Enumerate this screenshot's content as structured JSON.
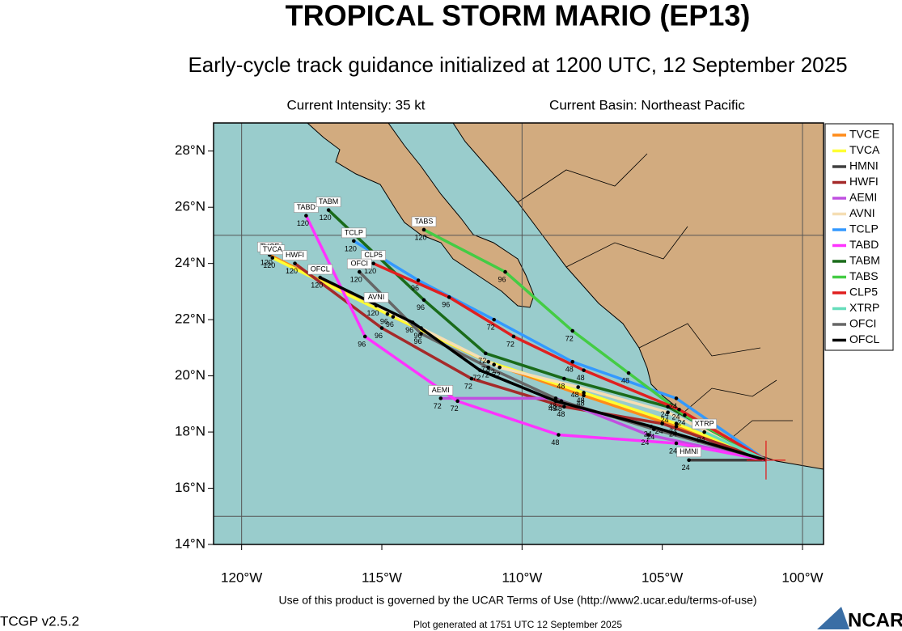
{
  "chart_data": {
    "type": "track-map",
    "title": "TROPICAL STORM MARIO (EP13)",
    "subtitle": "Early-cycle track guidance initialized at 1200 UTC, 12 September 2025",
    "intensity": "Current Intensity: 35 kt",
    "basin": "Current Basin: Northeast Pacific",
    "terms": "Use of this product is governed by the UCAR Terms of Use (http://www2.ucar.edu/terms-of-use)",
    "version": "TCGP v2.5.2",
    "generated": "Plot generated at 1751 UTC   12 September 2025",
    "logo": "NCAR",
    "xlim": [
      -121,
      -99.25
    ],
    "ylim": [
      14,
      29
    ],
    "xticks": [
      {
        "value": -120,
        "label": "120°W"
      },
      {
        "value": -115,
        "label": "115°W"
      },
      {
        "value": -110,
        "label": "110°W"
      },
      {
        "value": -105,
        "label": "105°W"
      },
      {
        "value": -100,
        "label": "100°W"
      }
    ],
    "yticks": [
      {
        "value": 14,
        "label": "14°N"
      },
      {
        "value": 16,
        "label": "16°N"
      },
      {
        "value": 18,
        "label": "18°N"
      },
      {
        "value": 20,
        "label": "20°N"
      },
      {
        "value": 22,
        "label": "22°N"
      },
      {
        "value": 24,
        "label": "24°N"
      },
      {
        "value": 26,
        "label": "26°N"
      },
      {
        "value": 28,
        "label": "28°N"
      }
    ],
    "grid_lon": [
      -120,
      -110,
      -100
    ],
    "grid_lat": [
      15,
      25
    ],
    "hours": [
      0,
      24,
      48,
      72,
      96,
      120
    ],
    "series": [
      {
        "name": "TVCE",
        "color": "#ff8c1a",
        "lon": [
          -101.3,
          -104.5,
          -107.8,
          -111.0,
          -114.6,
          -119.0
        ],
        "lat": [
          17.0,
          18.2,
          19.3,
          20.4,
          22.1,
          24.3
        ]
      },
      {
        "name": "TVCA",
        "color": "#ffff33",
        "lon": [
          -101.3,
          -104.5,
          -107.8,
          -111.2,
          -114.8,
          -118.9
        ],
        "lat": [
          17.0,
          18.3,
          19.4,
          20.5,
          22.2,
          24.2
        ]
      },
      {
        "name": "HMNI",
        "color": "#404040",
        "lon": [
          -101.3,
          -104.05,
          null,
          null,
          null,
          null
        ],
        "lat": [
          17.0,
          17.0,
          null,
          null,
          null,
          null
        ]
      },
      {
        "name": "HWFI",
        "color": "#a52a2a",
        "lon": [
          -101.3,
          -105.0,
          -108.5,
          -111.8,
          -115.0,
          -118.1
        ],
        "lat": [
          17.0,
          18.3,
          18.9,
          19.9,
          21.7,
          24.0
        ]
      },
      {
        "name": "AEMI",
        "color": "#c050e0",
        "lon": [
          -101.3,
          -105.5,
          -108.8,
          -112.9,
          null,
          null
        ],
        "lat": [
          17.0,
          17.9,
          19.2,
          19.2,
          null,
          null
        ]
      },
      {
        "name": "AVNI",
        "color": "#f5deb3",
        "lon": [
          -101.3,
          -104.8,
          -108.0,
          -110.8,
          -113.6,
          -115.2
        ],
        "lat": [
          17.0,
          18.7,
          19.6,
          20.3,
          21.7,
          22.5
        ]
      },
      {
        "name": "TCLP",
        "color": "#3399ff",
        "lon": [
          -101.3,
          -104.5,
          -108.2,
          -111.0,
          -113.7,
          -116.0
        ],
        "lat": [
          17.0,
          19.2,
          20.5,
          22.0,
          23.4,
          24.8
        ]
      },
      {
        "name": "TABD",
        "color": "#ff33ff",
        "lon": [
          -101.3,
          -104.5,
          -108.7,
          -112.3,
          -115.6,
          -117.7
        ],
        "lat": [
          17.0,
          17.6,
          17.9,
          19.1,
          21.4,
          25.7
        ]
      },
      {
        "name": "TABM",
        "color": "#1a6b1a",
        "lon": [
          -101.3,
          -104.8,
          -108.5,
          -111.3,
          -113.5,
          -116.9
        ],
        "lat": [
          17.0,
          18.9,
          19.9,
          20.8,
          22.7,
          25.9
        ]
      },
      {
        "name": "TABS",
        "color": "#44cc44",
        "lon": [
          -101.3,
          -104.2,
          -106.2,
          -108.2,
          -110.6,
          -113.5
        ],
        "lat": [
          17.0,
          18.6,
          20.1,
          21.6,
          23.7,
          25.2
        ]
      },
      {
        "name": "CLP5",
        "color": "#e02020",
        "lon": [
          -101.3,
          -104.4,
          -107.8,
          -110.3,
          -112.6,
          -115.3
        ],
        "lat": [
          17.0,
          18.8,
          20.2,
          21.4,
          22.8,
          24.0
        ]
      },
      {
        "name": "XTRP",
        "color": "#66ddbb",
        "lon": [
          -101.3,
          -103.5,
          null,
          null,
          null,
          null
        ],
        "lat": [
          17.0,
          18.0,
          null,
          null,
          null,
          null
        ]
      },
      {
        "name": "OFCI",
        "color": "#666666",
        "lon": [
          -101.3,
          -105.3,
          -108.6,
          -111.2,
          -113.6,
          -115.8
        ],
        "lat": [
          17.0,
          18.1,
          19.1,
          20.3,
          21.5,
          23.7
        ]
      },
      {
        "name": "OFCL",
        "color": "#000000",
        "lon": [
          -101.3,
          -105.4,
          -108.8,
          -111.5,
          -113.9,
          -117.2
        ],
        "lat": [
          17.0,
          18.2,
          19.1,
          20.2,
          21.9,
          23.5
        ]
      }
    ]
  }
}
